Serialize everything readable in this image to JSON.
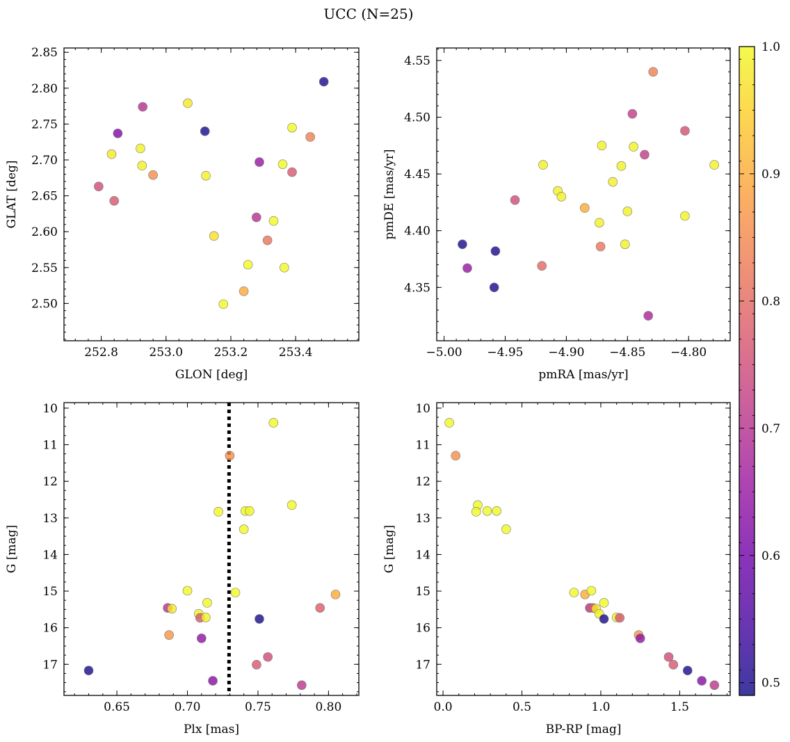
{
  "figure": {
    "title": "UCC (N=25)"
  },
  "colorbar": {
    "min": 0.49,
    "max": 1.0,
    "ticks": [
      0.5,
      0.6,
      0.7,
      0.8,
      0.9,
      1.0
    ],
    "tick_labels": [
      "0.5",
      "0.6",
      "0.7",
      "0.8",
      "0.9",
      "1.0"
    ],
    "colormap": "plasma",
    "colormap_stops": [
      "#0d0887",
      "#46039f",
      "#7201a8",
      "#9c179e",
      "#bd3786",
      "#d8576b",
      "#ed7953",
      "#fb9f3a",
      "#fdca26",
      "#f0f921"
    ],
    "marker_alpha": 0.8
  },
  "chart_data": [
    {
      "type": "scatter",
      "xlabel": "GLON [deg]",
      "ylabel": "GLAT [deg]",
      "xlim": [
        252.685,
        253.595
      ],
      "ylim": [
        2.448,
        2.856
      ],
      "xticks": [
        252.8,
        253.0,
        253.2,
        253.4
      ],
      "xtick_labels": [
        "252.8",
        "253.0",
        "253.2",
        "253.4"
      ],
      "yticks": [
        2.5,
        2.55,
        2.6,
        2.65,
        2.7,
        2.75,
        2.8,
        2.85
      ],
      "ytick_labels": [
        "2.50",
        "2.55",
        "2.60",
        "2.65",
        "2.70",
        "2.75",
        "2.80",
        "2.85"
      ],
      "y_inverted": false,
      "points": [
        {
          "x": 253.487,
          "y": 2.809,
          "c": 0.5
        },
        {
          "x": 253.12,
          "y": 2.74,
          "c": 0.5
        },
        {
          "x": 252.851,
          "y": 2.737,
          "c": 0.62
        },
        {
          "x": 252.928,
          "y": 2.774,
          "c": 0.7
        },
        {
          "x": 253.288,
          "y": 2.697,
          "c": 0.65
        },
        {
          "x": 253.279,
          "y": 2.62,
          "c": 0.7
        },
        {
          "x": 252.792,
          "y": 2.663,
          "c": 0.75
        },
        {
          "x": 252.84,
          "y": 2.643,
          "c": 0.77
        },
        {
          "x": 253.389,
          "y": 2.683,
          "c": 0.77
        },
        {
          "x": 253.313,
          "y": 2.588,
          "c": 0.82
        },
        {
          "x": 253.445,
          "y": 2.732,
          "c": 0.84
        },
        {
          "x": 252.96,
          "y": 2.679,
          "c": 0.86
        },
        {
          "x": 253.24,
          "y": 2.517,
          "c": 0.9
        },
        {
          "x": 253.067,
          "y": 2.779,
          "c": 0.98
        },
        {
          "x": 252.832,
          "y": 2.708,
          "c": 0.98
        },
        {
          "x": 252.921,
          "y": 2.716,
          "c": 0.99
        },
        {
          "x": 252.926,
          "y": 2.692,
          "c": 0.99
        },
        {
          "x": 253.123,
          "y": 2.678,
          "c": 0.99
        },
        {
          "x": 253.148,
          "y": 2.594,
          "c": 0.97
        },
        {
          "x": 253.389,
          "y": 2.745,
          "c": 1.0
        },
        {
          "x": 253.36,
          "y": 2.694,
          "c": 1.0
        },
        {
          "x": 253.332,
          "y": 2.615,
          "c": 1.0
        },
        {
          "x": 253.253,
          "y": 2.554,
          "c": 1.0
        },
        {
          "x": 253.365,
          "y": 2.55,
          "c": 1.0
        },
        {
          "x": 253.177,
          "y": 2.499,
          "c": 1.0
        }
      ]
    },
    {
      "type": "scatter",
      "xlabel": "pmRA [mas/yr]",
      "ylabel": "pmDE [mas/yr]",
      "xlim": [
        -5.006,
        -4.766
      ],
      "ylim": [
        4.303,
        4.561
      ],
      "xticks": [
        -5.0,
        -4.95,
        -4.9,
        -4.85,
        -4.8
      ],
      "xtick_labels": [
        "−5.00",
        "−4.95",
        "−4.90",
        "−4.85",
        "−4.80"
      ],
      "yticks": [
        4.35,
        4.4,
        4.45,
        4.5,
        4.55
      ],
      "ytick_labels": [
        "4.35",
        "4.40",
        "4.45",
        "4.50",
        "4.55"
      ],
      "y_inverted": false,
      "points": [
        {
          "x": -4.985,
          "y": 4.388,
          "c": 0.5
        },
        {
          "x": -4.958,
          "y": 4.382,
          "c": 0.5
        },
        {
          "x": -4.959,
          "y": 4.35,
          "c": 0.5
        },
        {
          "x": -4.981,
          "y": 4.367,
          "c": 0.65
        },
        {
          "x": -4.833,
          "y": 4.325,
          "c": 0.68
        },
        {
          "x": -4.942,
          "y": 4.427,
          "c": 0.75
        },
        {
          "x": -4.846,
          "y": 4.503,
          "c": 0.72
        },
        {
          "x": -4.836,
          "y": 4.467,
          "c": 0.72
        },
        {
          "x": -4.803,
          "y": 4.488,
          "c": 0.76
        },
        {
          "x": -4.92,
          "y": 4.369,
          "c": 0.8
        },
        {
          "x": -4.872,
          "y": 4.386,
          "c": 0.82
        },
        {
          "x": -4.829,
          "y": 4.54,
          "c": 0.84
        },
        {
          "x": -4.885,
          "y": 4.42,
          "c": 0.9
        },
        {
          "x": -4.919,
          "y": 4.458,
          "c": 0.99
        },
        {
          "x": -4.907,
          "y": 4.435,
          "c": 0.99
        },
        {
          "x": -4.904,
          "y": 4.43,
          "c": 0.99
        },
        {
          "x": -4.871,
          "y": 4.475,
          "c": 0.99
        },
        {
          "x": -4.845,
          "y": 4.474,
          "c": 0.99
        },
        {
          "x": -4.855,
          "y": 4.457,
          "c": 0.99
        },
        {
          "x": -4.862,
          "y": 4.443,
          "c": 0.99
        },
        {
          "x": -4.85,
          "y": 4.417,
          "c": 0.99
        },
        {
          "x": -4.873,
          "y": 4.407,
          "c": 0.99
        },
        {
          "x": -4.852,
          "y": 4.388,
          "c": 0.99
        },
        {
          "x": -4.803,
          "y": 4.413,
          "c": 0.99
        },
        {
          "x": -4.779,
          "y": 4.458,
          "c": 0.99
        }
      ]
    },
    {
      "type": "scatter",
      "xlabel": "Plx [mas]",
      "ylabel": "G [mag]",
      "xlim": [
        0.6125,
        0.8215
      ],
      "ylim": [
        17.85,
        9.85
      ],
      "xticks": [
        0.65,
        0.7,
        0.75,
        0.8
      ],
      "xtick_labels": [
        "0.65",
        "0.70",
        "0.75",
        "0.80"
      ],
      "yticks": [
        10,
        11,
        12,
        13,
        14,
        15,
        16,
        17
      ],
      "ytick_labels": [
        "10",
        "11",
        "12",
        "13",
        "14",
        "15",
        "16",
        "17"
      ],
      "y_inverted": true,
      "vline": {
        "x": 0.7295,
        "style": "dotted"
      },
      "points": [
        {
          "x": 0.761,
          "y": 10.4,
          "c": 1.0
        },
        {
          "x": 0.73,
          "y": 11.3,
          "c": 0.86
        },
        {
          "x": 0.774,
          "y": 12.65,
          "c": 1.0
        },
        {
          "x": 0.722,
          "y": 12.83,
          "c": 1.0
        },
        {
          "x": 0.741,
          "y": 12.81,
          "c": 1.0
        },
        {
          "x": 0.744,
          "y": 12.81,
          "c": 1.0
        },
        {
          "x": 0.74,
          "y": 13.31,
          "c": 1.0
        },
        {
          "x": 0.7,
          "y": 14.99,
          "c": 1.0
        },
        {
          "x": 0.734,
          "y": 15.04,
          "c": 1.0
        },
        {
          "x": 0.805,
          "y": 15.09,
          "c": 0.9
        },
        {
          "x": 0.714,
          "y": 15.32,
          "c": 1.0
        },
        {
          "x": 0.686,
          "y": 15.46,
          "c": 0.7
        },
        {
          "x": 0.689,
          "y": 15.48,
          "c": 0.98
        },
        {
          "x": 0.794,
          "y": 15.46,
          "c": 0.78
        },
        {
          "x": 0.708,
          "y": 15.62,
          "c": 0.99
        },
        {
          "x": 0.709,
          "y": 15.73,
          "c": 0.77
        },
        {
          "x": 0.713,
          "y": 15.72,
          "c": 0.99
        },
        {
          "x": 0.751,
          "y": 15.76,
          "c": 0.5
        },
        {
          "x": 0.687,
          "y": 16.2,
          "c": 0.87
        },
        {
          "x": 0.71,
          "y": 16.29,
          "c": 0.64
        },
        {
          "x": 0.757,
          "y": 16.8,
          "c": 0.75
        },
        {
          "x": 0.749,
          "y": 17.01,
          "c": 0.77
        },
        {
          "x": 0.63,
          "y": 17.17,
          "c": 0.5
        },
        {
          "x": 0.718,
          "y": 17.45,
          "c": 0.63
        },
        {
          "x": 0.781,
          "y": 17.57,
          "c": 0.71
        }
      ]
    },
    {
      "type": "scatter",
      "xlabel": "BP-RP [mag]",
      "ylabel": "G [mag]",
      "xlim": [
        -0.04,
        1.82
      ],
      "ylim": [
        17.85,
        9.85
      ],
      "xticks": [
        0.0,
        0.5,
        1.0,
        1.5
      ],
      "xtick_labels": [
        "0.0",
        "0.5",
        "1.0",
        "1.5"
      ],
      "yticks": [
        10,
        11,
        12,
        13,
        14,
        15,
        16,
        17
      ],
      "ytick_labels": [
        "10",
        "11",
        "12",
        "13",
        "14",
        "15",
        "16",
        "17"
      ],
      "y_inverted": true,
      "points": [
        {
          "x": 0.04,
          "y": 10.4,
          "c": 1.0
        },
        {
          "x": 0.08,
          "y": 11.3,
          "c": 0.86
        },
        {
          "x": 0.22,
          "y": 12.65,
          "c": 1.0
        },
        {
          "x": 0.21,
          "y": 12.83,
          "c": 1.0
        },
        {
          "x": 0.28,
          "y": 12.81,
          "c": 1.0
        },
        {
          "x": 0.34,
          "y": 12.81,
          "c": 1.0
        },
        {
          "x": 0.4,
          "y": 13.31,
          "c": 1.0
        },
        {
          "x": 0.83,
          "y": 15.04,
          "c": 1.0
        },
        {
          "x": 0.9,
          "y": 15.09,
          "c": 0.9
        },
        {
          "x": 0.94,
          "y": 14.99,
          "c": 1.0
        },
        {
          "x": 1.02,
          "y": 15.32,
          "c": 1.0
        },
        {
          "x": 0.93,
          "y": 15.46,
          "c": 0.7
        },
        {
          "x": 0.95,
          "y": 15.46,
          "c": 0.78
        },
        {
          "x": 0.97,
          "y": 15.48,
          "c": 0.98
        },
        {
          "x": 0.99,
          "y": 15.62,
          "c": 0.99
        },
        {
          "x": 1.1,
          "y": 15.72,
          "c": 0.99
        },
        {
          "x": 1.12,
          "y": 15.73,
          "c": 0.77
        },
        {
          "x": 1.02,
          "y": 15.76,
          "c": 0.5
        },
        {
          "x": 1.24,
          "y": 16.2,
          "c": 0.87
        },
        {
          "x": 1.25,
          "y": 16.29,
          "c": 0.64
        },
        {
          "x": 1.43,
          "y": 16.8,
          "c": 0.75
        },
        {
          "x": 1.46,
          "y": 17.01,
          "c": 0.77
        },
        {
          "x": 1.55,
          "y": 17.17,
          "c": 0.5
        },
        {
          "x": 1.64,
          "y": 17.45,
          "c": 0.63
        },
        {
          "x": 1.72,
          "y": 17.57,
          "c": 0.71
        }
      ]
    }
  ]
}
